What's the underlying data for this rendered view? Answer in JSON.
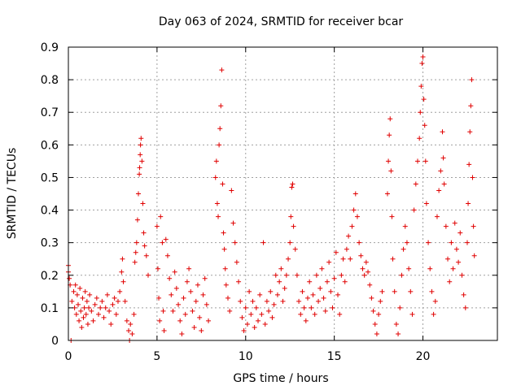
{
  "chart_data": {
    "type": "scatter",
    "title": "Day 063 of 2024, SRMTID for receiver bcar",
    "xlabel": "GPS time / hours",
    "ylabel": "SRMTID / TECUs",
    "xlim": [
      0,
      24.2
    ],
    "ylim": [
      0,
      0.9
    ],
    "xticks": [
      0,
      5,
      10,
      15,
      20
    ],
    "xtick_labels": [
      "0",
      "5",
      "10",
      "15",
      "20"
    ],
    "yticks": [
      0,
      0.1,
      0.2,
      0.3,
      0.4,
      0.5,
      0.6,
      0.7,
      0.8,
      0.9
    ],
    "ytick_labels": [
      "0",
      "0.1",
      "0.2",
      "0.3",
      "0.4",
      "0.5",
      "0.6",
      "0.7",
      "0.8",
      "0.9"
    ],
    "grid": true,
    "marker": "+",
    "marker_color": "#e00000",
    "series": [
      {
        "name": "SRMTID",
        "points": [
          [
            0.0,
            0.23
          ],
          [
            0.0,
            0.21
          ],
          [
            0.05,
            0.19
          ],
          [
            0.1,
            0.17
          ],
          [
            0.15,
            0.0
          ],
          [
            0.2,
            0.12
          ],
          [
            0.3,
            0.15
          ],
          [
            0.35,
            0.1
          ],
          [
            0.4,
            0.17
          ],
          [
            0.45,
            0.08
          ],
          [
            0.5,
            0.14
          ],
          [
            0.55,
            0.11
          ],
          [
            0.6,
            0.06
          ],
          [
            0.65,
            0.16
          ],
          [
            0.7,
            0.09
          ],
          [
            0.75,
            0.04
          ],
          [
            0.8,
            0.13
          ],
          [
            0.85,
            0.07
          ],
          [
            0.9,
            0.1
          ],
          [
            0.95,
            0.15
          ],
          [
            1.0,
            0.08
          ],
          [
            1.05,
            0.12
          ],
          [
            1.1,
            0.05
          ],
          [
            1.15,
            0.1
          ],
          [
            1.2,
            0.14
          ],
          [
            1.3,
            0.09
          ],
          [
            1.4,
            0.06
          ],
          [
            1.5,
            0.11
          ],
          [
            1.6,
            0.13
          ],
          [
            1.7,
            0.08
          ],
          [
            1.8,
            0.1
          ],
          [
            1.9,
            0.12
          ],
          [
            2.0,
            0.07
          ],
          [
            2.1,
            0.1
          ],
          [
            2.2,
            0.14
          ],
          [
            2.3,
            0.09
          ],
          [
            2.4,
            0.05
          ],
          [
            2.5,
            0.11
          ],
          [
            2.6,
            0.13
          ],
          [
            2.7,
            0.08
          ],
          [
            2.8,
            0.12
          ],
          [
            2.9,
            0.15
          ],
          [
            3.0,
            0.21
          ],
          [
            3.05,
            0.25
          ],
          [
            3.1,
            0.18
          ],
          [
            3.2,
            0.12
          ],
          [
            3.3,
            0.06
          ],
          [
            3.4,
            0.03
          ],
          [
            3.45,
            0.0
          ],
          [
            3.5,
            0.05
          ],
          [
            3.6,
            0.02
          ],
          [
            3.7,
            0.08
          ],
          [
            3.75,
            0.24
          ],
          [
            3.8,
            0.27
          ],
          [
            3.85,
            0.3
          ],
          [
            3.9,
            0.37
          ],
          [
            3.95,
            0.45
          ],
          [
            4.0,
            0.51
          ],
          [
            4.02,
            0.53
          ],
          [
            4.05,
            0.57
          ],
          [
            4.07,
            0.6
          ],
          [
            4.1,
            0.62
          ],
          [
            4.15,
            0.55
          ],
          [
            4.2,
            0.42
          ],
          [
            4.25,
            0.33
          ],
          [
            4.3,
            0.29
          ],
          [
            4.4,
            0.26
          ],
          [
            4.5,
            0.2
          ],
          [
            5.0,
            0.35
          ],
          [
            5.05,
            0.22
          ],
          [
            5.1,
            0.13
          ],
          [
            5.15,
            0.06
          ],
          [
            5.2,
            0.38
          ],
          [
            5.3,
            0.3
          ],
          [
            5.35,
            0.09
          ],
          [
            5.4,
            0.03
          ],
          [
            5.5,
            0.31
          ],
          [
            5.6,
            0.26
          ],
          [
            5.7,
            0.19
          ],
          [
            5.8,
            0.14
          ],
          [
            5.9,
            0.09
          ],
          [
            6.0,
            0.21
          ],
          [
            6.1,
            0.16
          ],
          [
            6.2,
            0.11
          ],
          [
            6.3,
            0.06
          ],
          [
            6.4,
            0.02
          ],
          [
            6.5,
            0.13
          ],
          [
            6.6,
            0.08
          ],
          [
            6.7,
            0.18
          ],
          [
            6.8,
            0.22
          ],
          [
            6.9,
            0.15
          ],
          [
            7.0,
            0.09
          ],
          [
            7.1,
            0.04
          ],
          [
            7.2,
            0.12
          ],
          [
            7.3,
            0.17
          ],
          [
            7.4,
            0.07
          ],
          [
            7.5,
            0.03
          ],
          [
            7.6,
            0.14
          ],
          [
            7.7,
            0.19
          ],
          [
            7.8,
            0.11
          ],
          [
            7.9,
            0.06
          ],
          [
            8.3,
            0.5
          ],
          [
            8.35,
            0.55
          ],
          [
            8.4,
            0.42
          ],
          [
            8.45,
            0.38
          ],
          [
            8.5,
            0.6
          ],
          [
            8.55,
            0.65
          ],
          [
            8.6,
            0.72
          ],
          [
            8.65,
            0.83
          ],
          [
            8.7,
            0.48
          ],
          [
            8.75,
            0.33
          ],
          [
            8.8,
            0.28
          ],
          [
            8.85,
            0.22
          ],
          [
            8.9,
            0.17
          ],
          [
            9.0,
            0.13
          ],
          [
            9.1,
            0.09
          ],
          [
            9.2,
            0.46
          ],
          [
            9.3,
            0.36
          ],
          [
            9.4,
            0.3
          ],
          [
            9.5,
            0.24
          ],
          [
            9.6,
            0.18
          ],
          [
            9.7,
            0.12
          ],
          [
            9.8,
            0.07
          ],
          [
            9.9,
            0.03
          ],
          [
            10.0,
            0.1
          ],
          [
            10.1,
            0.05
          ],
          [
            10.2,
            0.15
          ],
          [
            10.3,
            0.08
          ],
          [
            10.4,
            0.12
          ],
          [
            10.5,
            0.04
          ],
          [
            10.6,
            0.1
          ],
          [
            10.7,
            0.06
          ],
          [
            10.8,
            0.14
          ],
          [
            10.9,
            0.08
          ],
          [
            11.0,
            0.3
          ],
          [
            11.1,
            0.05
          ],
          [
            11.2,
            0.12
          ],
          [
            11.3,
            0.09
          ],
          [
            11.4,
            0.15
          ],
          [
            11.5,
            0.07
          ],
          [
            11.6,
            0.11
          ],
          [
            11.7,
            0.2
          ],
          [
            11.8,
            0.14
          ],
          [
            11.9,
            0.18
          ],
          [
            12.0,
            0.22
          ],
          [
            12.1,
            0.12
          ],
          [
            12.2,
            0.16
          ],
          [
            12.3,
            0.2
          ],
          [
            12.4,
            0.25
          ],
          [
            12.5,
            0.3
          ],
          [
            12.55,
            0.38
          ],
          [
            12.6,
            0.47
          ],
          [
            12.65,
            0.48
          ],
          [
            12.7,
            0.35
          ],
          [
            12.8,
            0.28
          ],
          [
            12.9,
            0.2
          ],
          [
            13.0,
            0.12
          ],
          [
            13.1,
            0.08
          ],
          [
            13.2,
            0.15
          ],
          [
            13.3,
            0.1
          ],
          [
            13.4,
            0.06
          ],
          [
            13.5,
            0.13
          ],
          [
            13.6,
            0.18
          ],
          [
            13.7,
            0.1
          ],
          [
            13.8,
            0.14
          ],
          [
            13.9,
            0.08
          ],
          [
            14.0,
            0.2
          ],
          [
            14.1,
            0.12
          ],
          [
            14.2,
            0.16
          ],
          [
            14.3,
            0.22
          ],
          [
            14.4,
            0.13
          ],
          [
            14.5,
            0.09
          ],
          [
            14.6,
            0.18
          ],
          [
            14.7,
            0.24
          ],
          [
            14.8,
            0.15
          ],
          [
            14.9,
            0.1
          ],
          [
            15.0,
            0.19
          ],
          [
            15.1,
            0.27
          ],
          [
            15.2,
            0.14
          ],
          [
            15.3,
            0.08
          ],
          [
            15.4,
            0.2
          ],
          [
            15.5,
            0.25
          ],
          [
            15.6,
            0.18
          ],
          [
            15.7,
            0.28
          ],
          [
            15.8,
            0.32
          ],
          [
            15.9,
            0.25
          ],
          [
            16.0,
            0.35
          ],
          [
            16.1,
            0.4
          ],
          [
            16.2,
            0.45
          ],
          [
            16.3,
            0.38
          ],
          [
            16.4,
            0.3
          ],
          [
            16.5,
            0.26
          ],
          [
            16.6,
            0.22
          ],
          [
            16.7,
            0.2
          ],
          [
            16.8,
            0.24
          ],
          [
            16.9,
            0.21
          ],
          [
            17.0,
            0.17
          ],
          [
            17.1,
            0.13
          ],
          [
            17.2,
            0.09
          ],
          [
            17.3,
            0.05
          ],
          [
            17.4,
            0.02
          ],
          [
            17.5,
            0.08
          ],
          [
            17.6,
            0.12
          ],
          [
            17.7,
            0.15
          ],
          [
            18.0,
            0.45
          ],
          [
            18.05,
            0.55
          ],
          [
            18.1,
            0.63
          ],
          [
            18.15,
            0.68
          ],
          [
            18.2,
            0.52
          ],
          [
            18.25,
            0.38
          ],
          [
            18.3,
            0.25
          ],
          [
            18.4,
            0.15
          ],
          [
            18.5,
            0.05
          ],
          [
            18.6,
            0.02
          ],
          [
            18.7,
            0.1
          ],
          [
            18.8,
            0.2
          ],
          [
            18.9,
            0.28
          ],
          [
            19.0,
            0.35
          ],
          [
            19.1,
            0.3
          ],
          [
            19.2,
            0.22
          ],
          [
            19.3,
            0.15
          ],
          [
            19.4,
            0.08
          ],
          [
            19.5,
            0.4
          ],
          [
            19.6,
            0.48
          ],
          [
            19.7,
            0.55
          ],
          [
            19.8,
            0.62
          ],
          [
            19.85,
            0.7
          ],
          [
            19.9,
            0.78
          ],
          [
            19.95,
            0.85
          ],
          [
            20.0,
            0.87
          ],
          [
            20.05,
            0.74
          ],
          [
            20.1,
            0.66
          ],
          [
            20.15,
            0.55
          ],
          [
            20.2,
            0.42
          ],
          [
            20.3,
            0.3
          ],
          [
            20.4,
            0.22
          ],
          [
            20.5,
            0.15
          ],
          [
            20.6,
            0.08
          ],
          [
            20.7,
            0.12
          ],
          [
            20.8,
            0.38
          ],
          [
            20.9,
            0.46
          ],
          [
            21.0,
            0.52
          ],
          [
            21.1,
            0.64
          ],
          [
            21.15,
            0.56
          ],
          [
            21.2,
            0.48
          ],
          [
            21.3,
            0.35
          ],
          [
            21.4,
            0.25
          ],
          [
            21.5,
            0.18
          ],
          [
            21.6,
            0.3
          ],
          [
            21.7,
            0.22
          ],
          [
            21.8,
            0.36
          ],
          [
            21.9,
            0.28
          ],
          [
            22.0,
            0.24
          ],
          [
            22.1,
            0.33
          ],
          [
            22.2,
            0.2
          ],
          [
            22.3,
            0.14
          ],
          [
            22.4,
            0.1
          ],
          [
            22.5,
            0.3
          ],
          [
            22.55,
            0.42
          ],
          [
            22.6,
            0.54
          ],
          [
            22.65,
            0.64
          ],
          [
            22.7,
            0.72
          ],
          [
            22.75,
            0.8
          ],
          [
            22.8,
            0.5
          ],
          [
            22.85,
            0.35
          ],
          [
            22.9,
            0.26
          ]
        ]
      }
    ]
  }
}
